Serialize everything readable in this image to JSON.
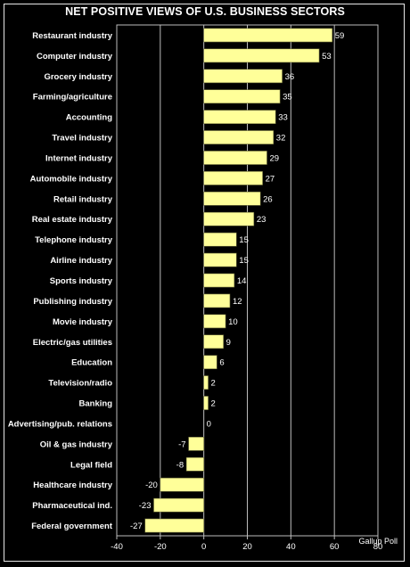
{
  "chart_data": {
    "type": "bar",
    "orientation": "horizontal",
    "title": "NET POSITIVE VIEWS OF U.S. BUSINESS SECTORS",
    "source": "Gallup Poll",
    "categories": [
      "Restaurant industry",
      "Computer industry",
      "Grocery industry",
      "Farming/agriculture",
      "Accounting",
      "Travel industry",
      "Internet industry",
      "Automobile industry",
      "Retail industry",
      "Real estate industry",
      "Telephone industry",
      "Airline industry",
      "Sports industry",
      "Publishing industry",
      "Movie industry",
      "Electric/gas utilities",
      "Education",
      "Television/radio",
      "Banking",
      "Advertising/pub. relations",
      "Oil & gas industry",
      "Legal field",
      "Healthcare industry",
      "Pharmaceutical ind.",
      "Federal government"
    ],
    "values": [
      59,
      53,
      36,
      35,
      33,
      32,
      29,
      27,
      26,
      23,
      15,
      15,
      14,
      12,
      10,
      9,
      6,
      2,
      2,
      0,
      -7,
      -8,
      -20,
      -23,
      -27
    ],
    "xlim": [
      -40,
      80
    ],
    "xticks": [
      -40,
      -20,
      0,
      20,
      40,
      60,
      80
    ],
    "grid": true,
    "bar_color": "#ffff99",
    "background_color": "#000000"
  }
}
